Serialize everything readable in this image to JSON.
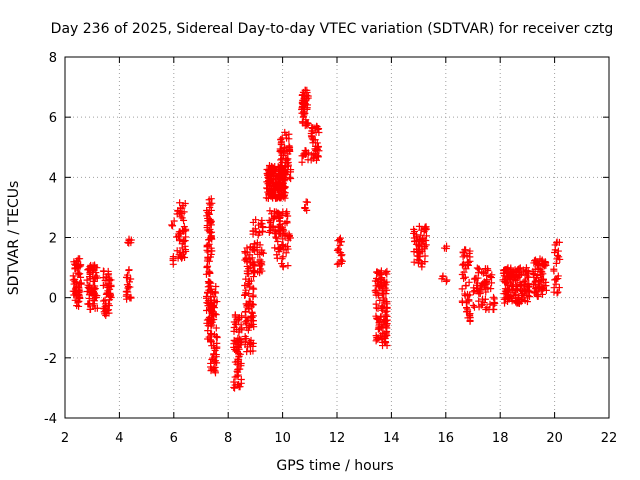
{
  "chart_data": {
    "type": "scatter",
    "title": "Day 236 of 2025, Sidereal Day-to-day VTEC variation (SDTVAR) for receiver cztg",
    "xlabel": "GPS time / hours",
    "ylabel": "SDTVAR / TECUs",
    "xlim": [
      2,
      22
    ],
    "ylim": [
      -4,
      8
    ],
    "xticks": [
      2,
      4,
      6,
      8,
      10,
      12,
      14,
      16,
      18,
      20,
      22
    ],
    "yticks": [
      -4,
      -2,
      0,
      2,
      4,
      6,
      8
    ],
    "grid": true,
    "marker": "+",
    "color": "#ff0000",
    "clusters": [
      {
        "x": [
          2.3,
          2.6
        ],
        "y": [
          -0.3,
          1.3
        ],
        "n": 60
      },
      {
        "x": [
          2.8,
          3.2
        ],
        "y": [
          -0.4,
          1.1
        ],
        "n": 70
      },
      {
        "x": [
          3.4,
          3.7
        ],
        "y": [
          -0.6,
          0.9
        ],
        "n": 50
      },
      {
        "x": [
          4.25,
          4.45
        ],
        "y": [
          -0.1,
          1.0
        ],
        "n": 20
      },
      {
        "x": [
          4.3,
          4.45
        ],
        "y": [
          1.8,
          1.95
        ],
        "n": 6
      },
      {
        "x": [
          5.9,
          6.05
        ],
        "y": [
          1.1,
          1.4
        ],
        "n": 4
      },
      {
        "x": [
          5.9,
          6.05
        ],
        "y": [
          2.2,
          2.6
        ],
        "n": 4
      },
      {
        "x": [
          6.1,
          6.45
        ],
        "y": [
          1.3,
          3.2
        ],
        "n": 50
      },
      {
        "x": [
          7.2,
          7.4
        ],
        "y": [
          -1.5,
          3.3
        ],
        "n": 110
      },
      {
        "x": [
          7.35,
          7.6
        ],
        "y": [
          -2.5,
          0.5
        ],
        "n": 60
      },
      {
        "x": [
          8.2,
          8.5
        ],
        "y": [
          -3.1,
          -0.5
        ],
        "n": 70
      },
      {
        "x": [
          8.6,
          8.95
        ],
        "y": [
          -1.8,
          1.8
        ],
        "n": 100
      },
      {
        "x": [
          8.9,
          9.3
        ],
        "y": [
          0.8,
          2.6
        ],
        "n": 50
      },
      {
        "x": [
          9.4,
          10.1
        ],
        "y": [
          3.3,
          4.4
        ],
        "n": 200
      },
      {
        "x": [
          9.5,
          10.2
        ],
        "y": [
          2.1,
          2.9
        ],
        "n": 50
      },
      {
        "x": [
          9.7,
          10.3
        ],
        "y": [
          1.0,
          2.3
        ],
        "n": 40
      },
      {
        "x": [
          9.9,
          10.3
        ],
        "y": [
          3.8,
          5.5
        ],
        "n": 60
      },
      {
        "x": [
          10.7,
          10.95
        ],
        "y": [
          5.7,
          6.9
        ],
        "n": 50
      },
      {
        "x": [
          10.7,
          10.95
        ],
        "y": [
          4.5,
          4.9
        ],
        "n": 12
      },
      {
        "x": [
          10.8,
          10.95
        ],
        "y": [
          2.9,
          3.2
        ],
        "n": 6
      },
      {
        "x": [
          11.05,
          11.35
        ],
        "y": [
          4.5,
          5.7
        ],
        "n": 40
      },
      {
        "x": [
          12.0,
          12.2
        ],
        "y": [
          1.1,
          2.1
        ],
        "n": 20
      },
      {
        "x": [
          13.4,
          13.85
        ],
        "y": [
          -1.6,
          0.9
        ],
        "n": 120
      },
      {
        "x": [
          14.8,
          15.3
        ],
        "y": [
          1.0,
          2.4
        ],
        "n": 60
      },
      {
        "x": [
          15.85,
          16.05
        ],
        "y": [
          0.2,
          0.8
        ],
        "n": 5
      },
      {
        "x": [
          15.95,
          16.05
        ],
        "y": [
          1.5,
          1.8
        ],
        "n": 3
      },
      {
        "x": [
          16.6,
          16.9
        ],
        "y": [
          -0.8,
          1.7
        ],
        "n": 50
      },
      {
        "x": [
          17.0,
          17.8
        ],
        "y": [
          -0.4,
          1.0
        ],
        "n": 70
      },
      {
        "x": [
          18.1,
          19.1
        ],
        "y": [
          -0.2,
          1.0
        ],
        "n": 160
      },
      {
        "x": [
          19.2,
          19.7
        ],
        "y": [
          0.0,
          1.3
        ],
        "n": 70
      },
      {
        "x": [
          19.95,
          20.2
        ],
        "y": [
          0.1,
          1.9
        ],
        "n": 25
      }
    ]
  }
}
